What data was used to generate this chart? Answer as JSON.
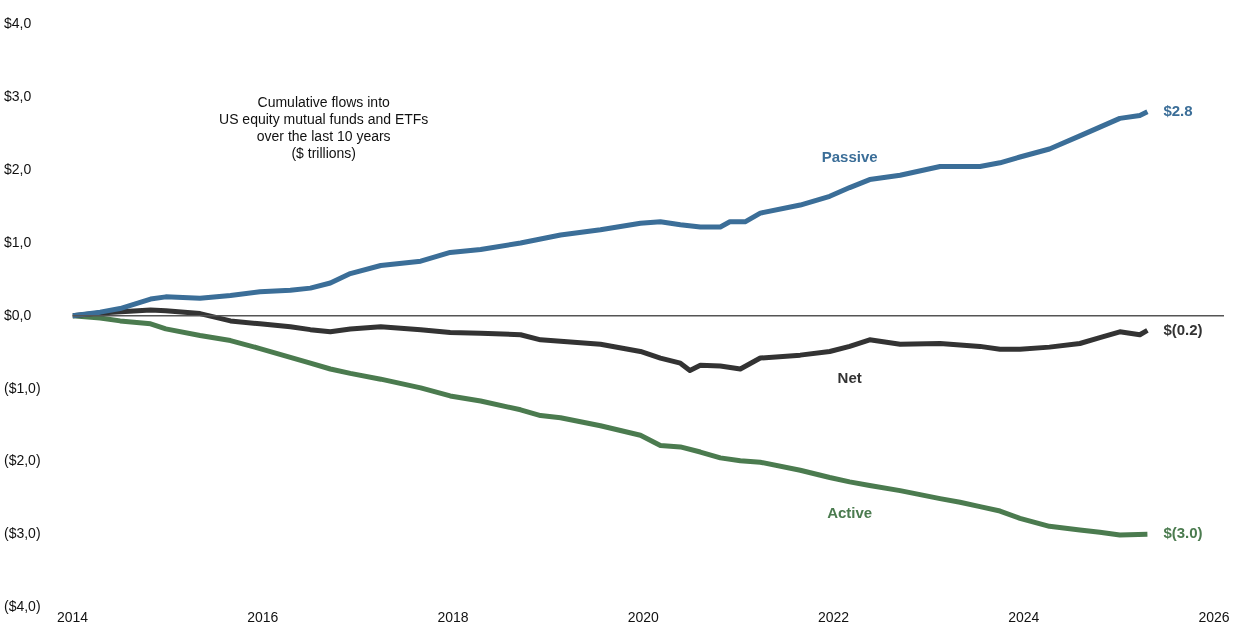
{
  "chart_data": {
    "type": "line",
    "title": "Cumulative flows into\nUS equity mutual funds and ETFs\nover the last 10 years\n($ trillions)",
    "xlim": [
      2014,
      2026
    ],
    "xticks": [
      2014,
      2016,
      2018,
      2020,
      2022,
      2024,
      2026
    ],
    "ylim": [
      -4,
      4
    ],
    "yticks": [
      {
        "value": 4,
        "label": "$4,0"
      },
      {
        "value": 3,
        "label": "$3,0"
      },
      {
        "value": 2,
        "label": "$2,0"
      },
      {
        "value": 1,
        "label": "$1,0"
      },
      {
        "value": 0,
        "label": "$0,0"
      },
      {
        "value": -1,
        "label": "($1,0)"
      },
      {
        "value": -2,
        "label": "($2,0)"
      },
      {
        "value": -3,
        "label": "($3,0)"
      },
      {
        "value": -4,
        "label": "($4,0)"
      }
    ],
    "legend": false,
    "marker": "none",
    "line_style": "solid",
    "ref_lines": [
      {
        "axis": "y",
        "value": 0,
        "color": "#555555"
      }
    ],
    "series": [
      {
        "name": "Passive",
        "color": "#3b6e98",
        "x": [
          2014,
          2014.29,
          2014.5,
          2014.82,
          2014.98,
          2015.34,
          2015.66,
          2015.97,
          2016.29,
          2016.5,
          2016.71,
          2016.92,
          2017.24,
          2017.66,
          2017.97,
          2018.29,
          2018.71,
          2019.13,
          2019.55,
          2019.97,
          2020.18,
          2020.39,
          2020.6,
          2020.81,
          2020.91,
          2021.07,
          2021.23,
          2021.65,
          2021.96,
          2022.17,
          2022.38,
          2022.7,
          2023.12,
          2023.54,
          2023.75,
          2023.96,
          2024.27,
          2024.59,
          2024.8,
          2025.01,
          2025.22,
          2025.3
        ],
        "values": [
          0,
          0.05,
          0.1,
          0.23,
          0.26,
          0.24,
          0.28,
          0.33,
          0.35,
          0.38,
          0.45,
          0.58,
          0.69,
          0.75,
          0.87,
          0.91,
          1.0,
          1.11,
          1.18,
          1.27,
          1.29,
          1.25,
          1.22,
          1.22,
          1.29,
          1.29,
          1.41,
          1.52,
          1.64,
          1.76,
          1.87,
          1.93,
          2.05,
          2.05,
          2.1,
          2.18,
          2.29,
          2.47,
          2.59,
          2.71,
          2.75,
          2.8
        ],
        "value_labels": [
          null,
          null,
          null,
          null,
          null,
          null,
          null,
          null,
          null,
          null,
          null,
          null,
          null,
          null,
          null,
          null,
          null,
          null,
          null,
          null,
          null,
          null,
          null,
          null,
          null,
          null,
          null,
          null,
          null,
          null,
          null,
          null,
          null,
          null,
          null,
          null,
          null,
          null,
          null,
          null,
          null,
          "$2.8"
        ]
      },
      {
        "name": "Net",
        "color": "#333333",
        "x": [
          2014,
          2014.29,
          2014.82,
          2014.98,
          2015.34,
          2015.66,
          2015.97,
          2016.29,
          2016.5,
          2016.71,
          2016.92,
          2017.24,
          2017.66,
          2017.97,
          2018.29,
          2018.71,
          2018.92,
          2019.13,
          2019.55,
          2019.97,
          2020.18,
          2020.39,
          2020.49,
          2020.6,
          2020.81,
          2021.02,
          2021.23,
          2021.65,
          2021.96,
          2022.17,
          2022.38,
          2022.7,
          2023.12,
          2023.54,
          2023.75,
          2023.96,
          2024.27,
          2024.59,
          2024.8,
          2025.01,
          2025.22,
          2025.3
        ],
        "values": [
          0,
          0.04,
          0.08,
          0.07,
          0.03,
          -0.07,
          -0.11,
          -0.15,
          -0.19,
          -0.22,
          -0.18,
          -0.15,
          -0.19,
          -0.23,
          -0.24,
          -0.26,
          -0.33,
          -0.35,
          -0.39,
          -0.49,
          -0.58,
          -0.65,
          -0.75,
          -0.68,
          -0.69,
          -0.73,
          -0.58,
          -0.54,
          -0.49,
          -0.42,
          -0.33,
          -0.39,
          -0.38,
          -0.42,
          -0.46,
          -0.46,
          -0.43,
          -0.38,
          -0.3,
          -0.22,
          -0.26,
          -0.2
        ],
        "value_labels": [
          null,
          null,
          null,
          null,
          null,
          null,
          null,
          null,
          null,
          null,
          null,
          null,
          null,
          null,
          null,
          null,
          null,
          null,
          null,
          null,
          null,
          null,
          null,
          null,
          null,
          null,
          null,
          null,
          null,
          null,
          null,
          null,
          null,
          null,
          null,
          null,
          null,
          null,
          null,
          null,
          null,
          "$(0.2)"
        ]
      },
      {
        "name": "Active",
        "color": "#4b7b4f",
        "x": [
          2014,
          2014.29,
          2014.5,
          2014.82,
          2014.98,
          2015.34,
          2015.66,
          2015.97,
          2016.29,
          2016.5,
          2016.71,
          2016.92,
          2017.24,
          2017.66,
          2017.97,
          2018.29,
          2018.71,
          2018.92,
          2019.13,
          2019.55,
          2019.97,
          2020.18,
          2020.39,
          2020.6,
          2020.81,
          2021.02,
          2021.23,
          2021.65,
          2021.96,
          2022.17,
          2022.38,
          2022.7,
          2023.12,
          2023.33,
          2023.54,
          2023.75,
          2023.96,
          2024.27,
          2024.59,
          2024.8,
          2025.01,
          2025.3
        ],
        "values": [
          0,
          -0.03,
          -0.07,
          -0.11,
          -0.18,
          -0.27,
          -0.34,
          -0.45,
          -0.57,
          -0.65,
          -0.73,
          -0.79,
          -0.87,
          -0.99,
          -1.1,
          -1.17,
          -1.29,
          -1.37,
          -1.4,
          -1.51,
          -1.64,
          -1.78,
          -1.8,
          -1.87,
          -1.95,
          -1.99,
          -2.01,
          -2.12,
          -2.22,
          -2.28,
          -2.33,
          -2.4,
          -2.51,
          -2.56,
          -2.62,
          -2.68,
          -2.78,
          -2.89,
          -2.94,
          -2.97,
          -3.01,
          -3.0
        ],
        "value_labels": [
          null,
          null,
          null,
          null,
          null,
          null,
          null,
          null,
          null,
          null,
          null,
          null,
          null,
          null,
          null,
          null,
          null,
          null,
          null,
          null,
          null,
          null,
          null,
          null,
          null,
          null,
          null,
          null,
          null,
          null,
          null,
          null,
          null,
          null,
          null,
          null,
          null,
          null,
          null,
          null,
          null,
          "$(3.0)"
        ]
      }
    ]
  }
}
